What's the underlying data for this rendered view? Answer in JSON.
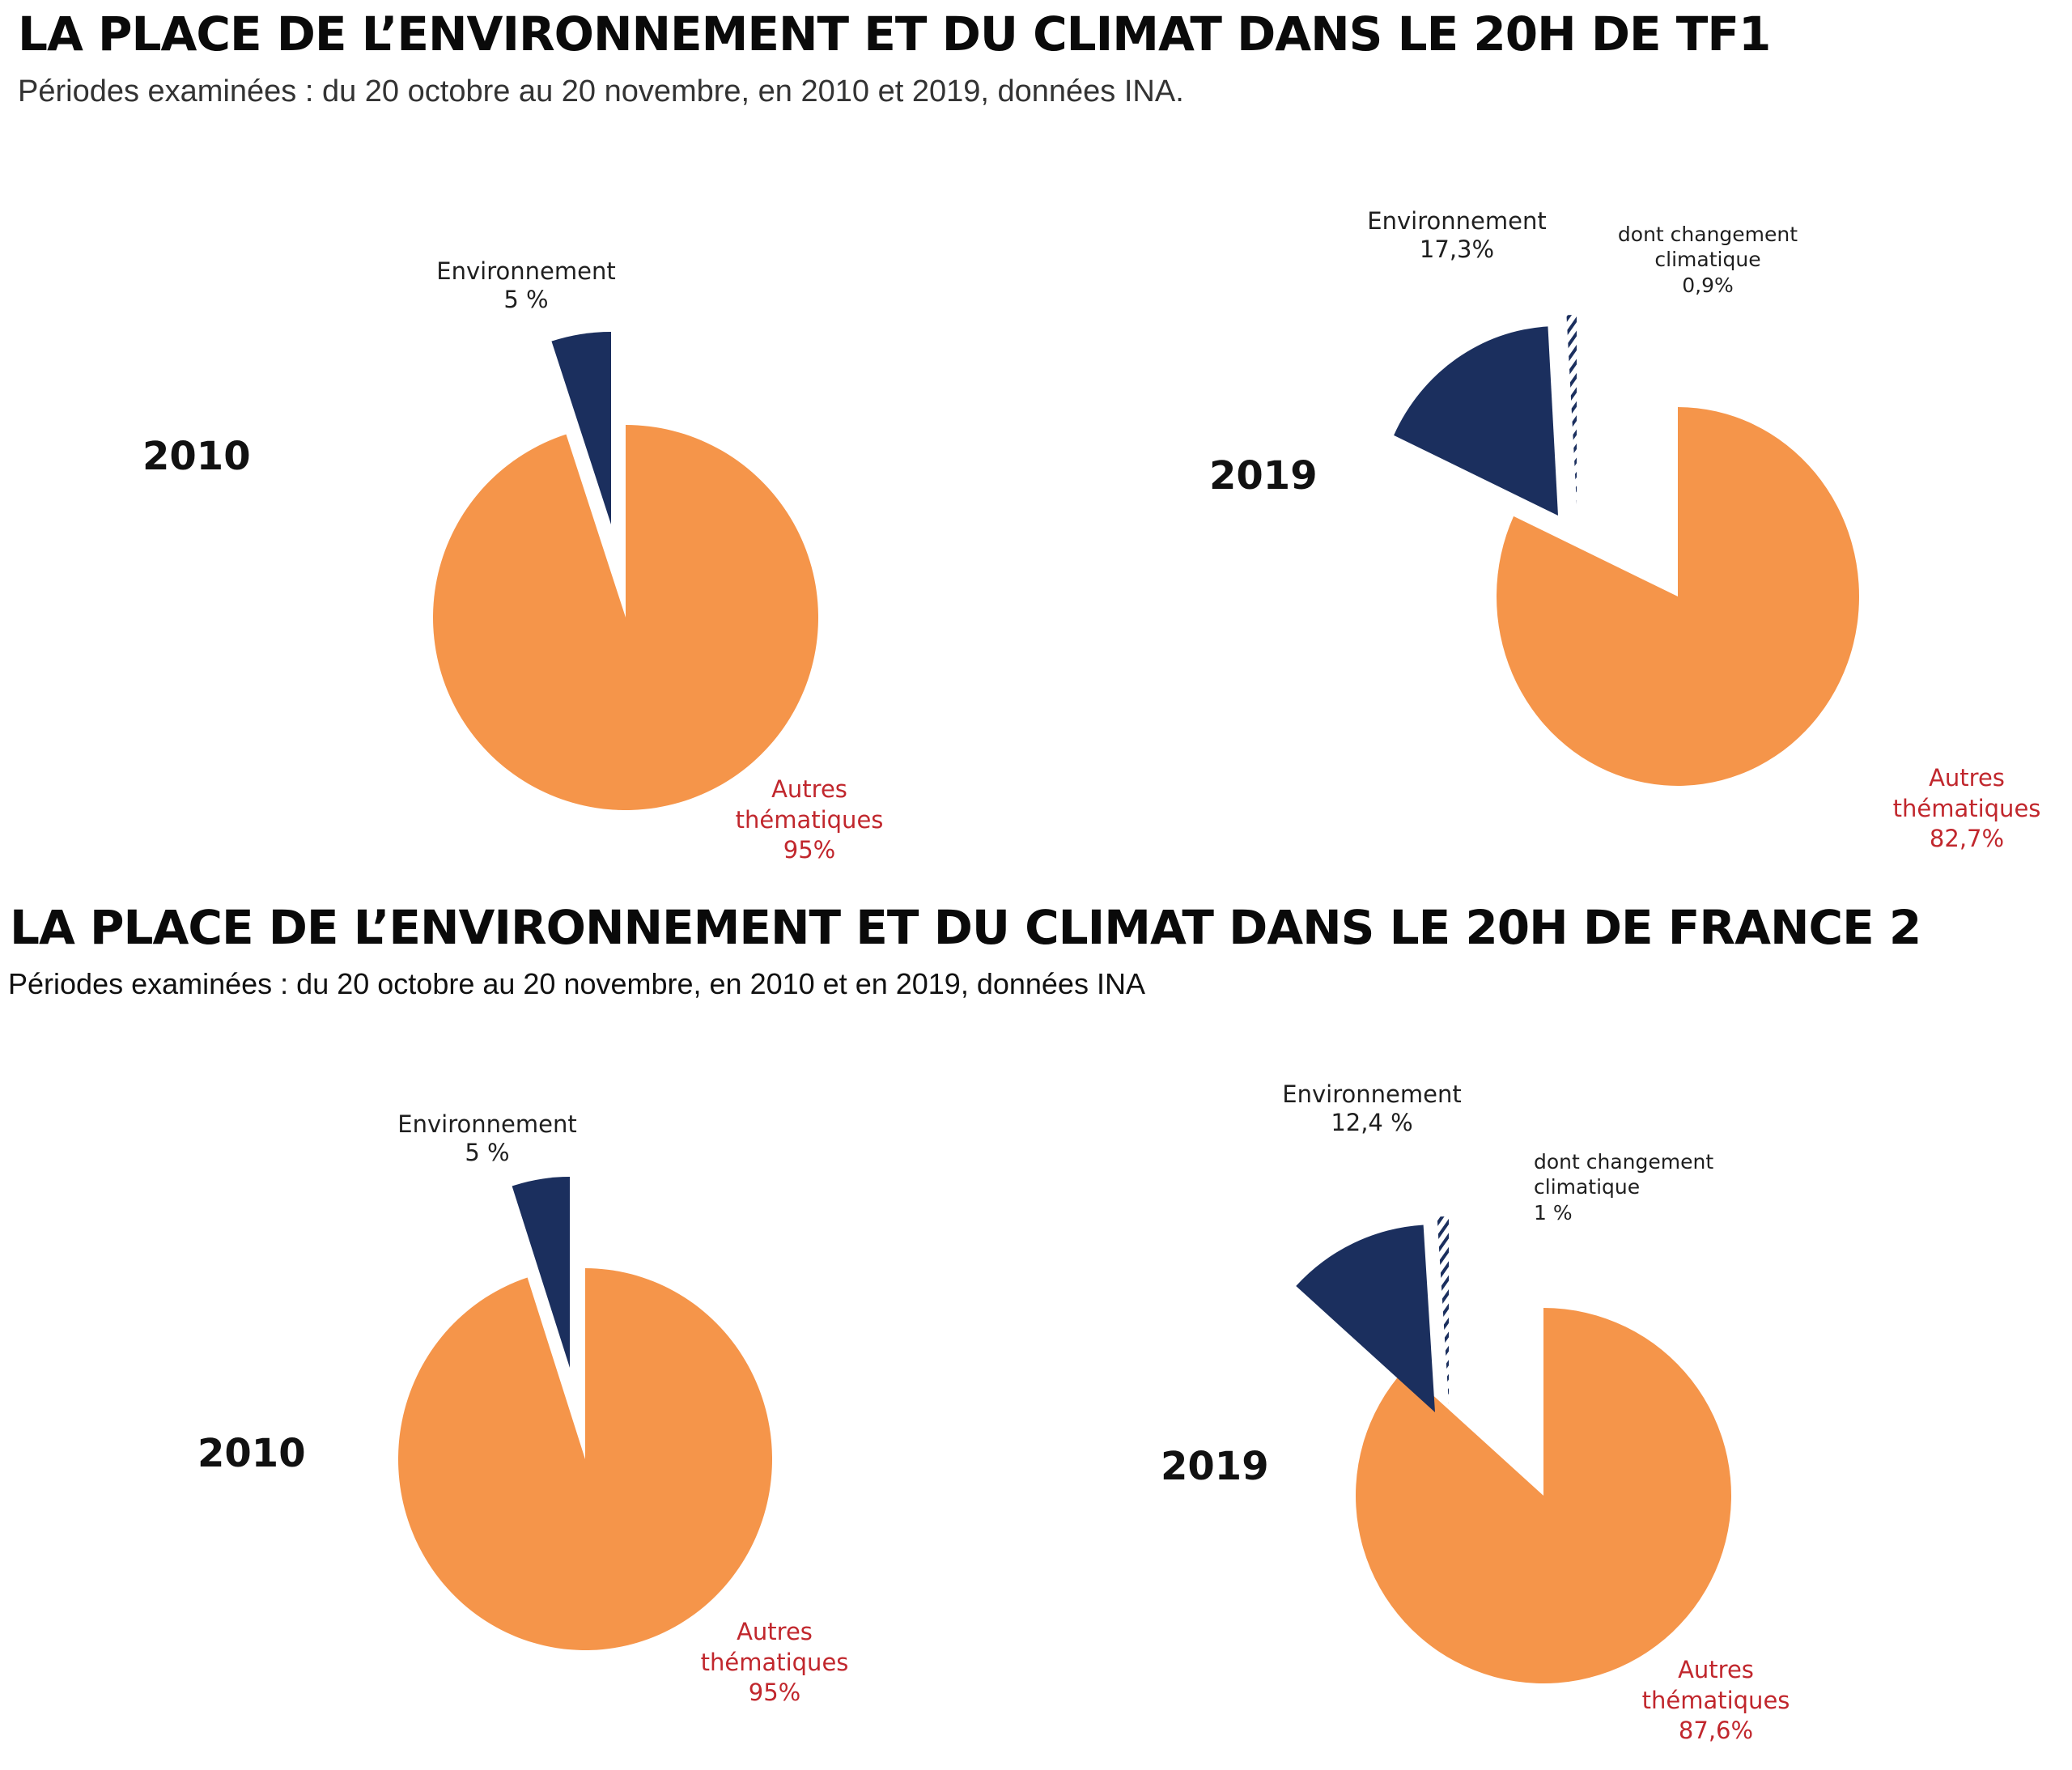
{
  "colors": {
    "other": "#F5954A",
    "environment": "#1B2F5E",
    "climate_hatch": "#1B2F5E",
    "other_label": "#C1272D"
  },
  "sections": [
    {
      "title": "LA PLACE DE L’ENVIRONNEMENT ET DU CLIMAT DANS LE 20H DE TF1",
      "subtitle": "Périodes examinées : du 20 octobre au 20 novembre, en 2010 et 2019, données INA."
    },
    {
      "title": "LA PLACE DE L’ENVIRONNEMENT ET DU CLIMAT DANS LE 20H DE FRANCE 2",
      "subtitle": "Périodes examinées : du 20 octobre au 20 novembre, en 2010 et en 2019, données INA"
    }
  ],
  "chart_data": [
    {
      "type": "pie",
      "channel": "TF1",
      "title": "2010",
      "slices": [
        {
          "label": "Environnement",
          "value": 5,
          "value_label": "5 %"
        },
        {
          "label": "Autres thématiques",
          "value": 95,
          "value_label": "95%",
          "label_lines": [
            "Autres",
            "thématiques"
          ]
        }
      ]
    },
    {
      "type": "pie",
      "channel": "TF1",
      "title": "2019",
      "slices": [
        {
          "label": "Environnement",
          "value": 17.3,
          "value_label": "17,3%"
        },
        {
          "label": "dont changement climatique",
          "value": 0.9,
          "value_label": "0,9%",
          "label_lines": [
            "dont changement",
            "climatique"
          ]
        },
        {
          "label": "Autres thématiques",
          "value": 82.7,
          "value_label": "82,7%",
          "label_lines": [
            "Autres",
            "thématiques"
          ]
        }
      ]
    },
    {
      "type": "pie",
      "channel": "France 2",
      "title": "2010",
      "slices": [
        {
          "label": "Environnement",
          "value": 5,
          "value_label": "5 %"
        },
        {
          "label": "Autres thématiques",
          "value": 95,
          "value_label": "95%",
          "label_lines": [
            "Autres",
            "thématiques"
          ]
        }
      ]
    },
    {
      "type": "pie",
      "channel": "France 2",
      "title": "2019",
      "slices": [
        {
          "label": "Environnement",
          "value": 12.4,
          "value_label": "12,4 %"
        },
        {
          "label": "dont changement climatique",
          "value": 1,
          "value_label": "1 %",
          "label_lines": [
            "dont changement",
            "climatique"
          ]
        },
        {
          "label": "Autres thématiques",
          "value": 87.6,
          "value_label": "87,6%",
          "label_lines": [
            "Autres",
            "thématiques"
          ]
        }
      ]
    }
  ]
}
